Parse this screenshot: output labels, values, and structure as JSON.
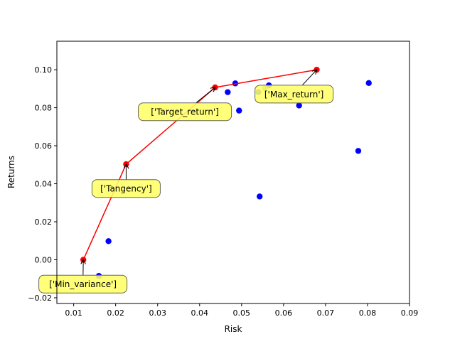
{
  "chart_data": {
    "type": "scatter",
    "xlabel": "Risk",
    "ylabel": "Returns",
    "xlim": [
      0.006,
      0.09
    ],
    "ylim": [
      -0.023,
      0.115
    ],
    "x_ticks": [
      {
        "value": 0.01,
        "label": "0.01"
      },
      {
        "value": 0.02,
        "label": "0.02"
      },
      {
        "value": 0.03,
        "label": "0.03"
      },
      {
        "value": 0.04,
        "label": "0.04"
      },
      {
        "value": 0.05,
        "label": "0.05"
      },
      {
        "value": 0.06,
        "label": "0.06"
      },
      {
        "value": 0.07,
        "label": "0.07"
      },
      {
        "value": 0.08,
        "label": "0.08"
      },
      {
        "value": 0.09,
        "label": "0.09"
      }
    ],
    "y_ticks": [
      {
        "value": -0.02,
        "label": "−0.02"
      },
      {
        "value": 0.0,
        "label": "0.00"
      },
      {
        "value": 0.02,
        "label": "0.02"
      },
      {
        "value": 0.04,
        "label": "0.04"
      },
      {
        "value": 0.06,
        "label": "0.06"
      },
      {
        "value": 0.08,
        "label": "0.08"
      },
      {
        "value": 0.1,
        "label": "0.10"
      }
    ],
    "grid": false,
    "series": [
      {
        "color": "#0000ff",
        "x": [
          0.016,
          0.0183,
          0.0467,
          0.0485,
          0.0494,
          0.054,
          0.0543,
          0.0565,
          0.0637,
          0.0778,
          0.0803
        ],
        "y": [
          -0.0085,
          0.0098,
          0.0882,
          0.0928,
          0.0785,
          0.0882,
          0.0333,
          0.0918,
          0.0812,
          0.0573,
          0.093
        ]
      },
      {
        "color": "#808080",
        "x": [
          0.0556
        ],
        "y": [
          0.0902
        ]
      },
      {
        "color": "#ff0000",
        "connected": true,
        "x": [
          0.0123,
          0.0225,
          0.0437,
          0.0679
        ],
        "y": [
          0.0,
          0.0503,
          0.0907,
          0.1
        ]
      }
    ],
    "annotations": [
      {
        "text": "['Min_variance']",
        "x": 0.0123,
        "y": 0.0,
        "text_x": 0.0122,
        "text_y": -0.0128
      },
      {
        "text": "['Tangency']",
        "x": 0.0225,
        "y": 0.0503,
        "text_x": 0.0225,
        "text_y": 0.0375
      },
      {
        "text": "['Target_return']",
        "x": 0.0437,
        "y": 0.0907,
        "text_x": 0.0365,
        "text_y": 0.0779
      },
      {
        "text": "['Max_return']",
        "x": 0.0679,
        "y": 0.1,
        "text_x": 0.0625,
        "text_y": 0.0872
      }
    ],
    "annotation_style": {
      "box_fill": "#ffff66",
      "box_edge": "#666655",
      "arrow_color": "#000000"
    }
  }
}
